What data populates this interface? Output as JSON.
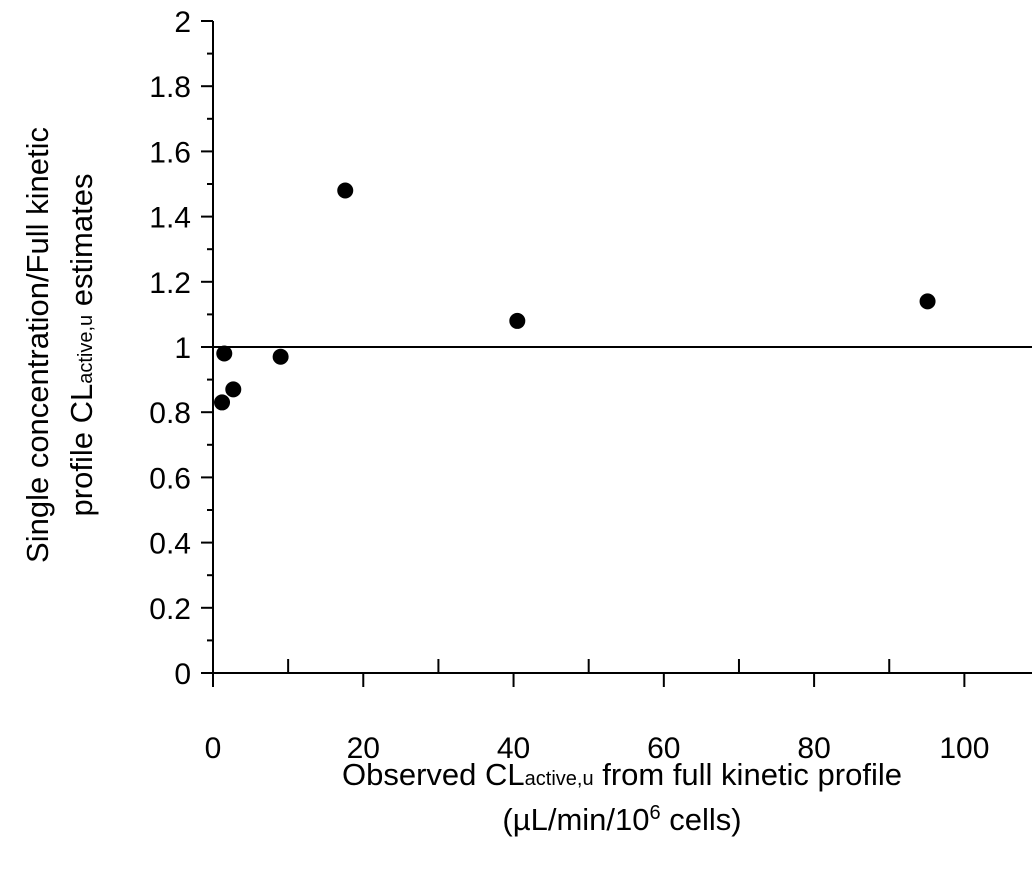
{
  "chart_data": {
    "type": "scatter",
    "title": "",
    "xlabel": {
      "line1_prefix": "Observed CL",
      "line1_subscript": "active,u",
      "line1_suffix": " from full kinetic profile",
      "line2_prefix": "(µL/min/10",
      "line2_superscript": "6",
      "line2_suffix": " cells)"
    },
    "ylabel": {
      "line1": "Single concentration/Full kinetic",
      "line2_prefix": "profile CL",
      "line2_subscript": "active,u",
      "line2_suffix": " estimates"
    },
    "xlim": [
      0,
      109
    ],
    "ylim": [
      0,
      2
    ],
    "x_ticks": [
      0,
      20,
      40,
      60,
      80,
      100
    ],
    "x_tick_labels": [
      "0",
      "20",
      "40",
      "60",
      "80",
      "100"
    ],
    "y_ticks": [
      0,
      0.2,
      0.4,
      0.6,
      0.8,
      1,
      1.2,
      1.4,
      1.6,
      1.8,
      2
    ],
    "y_tick_labels": [
      "0",
      "0.2",
      "0.4",
      "0.6",
      "0.8",
      "1",
      "1.2",
      "1.4",
      "1.6",
      "1.8",
      "2"
    ],
    "reference_line": {
      "y": 1
    },
    "grid": false,
    "legend": "none",
    "marker_color": "#000000",
    "series": [
      {
        "points": [
          {
            "x": 1.2,
            "y": 0.83
          },
          {
            "x": 1.5,
            "y": 0.98
          },
          {
            "x": 2.7,
            "y": 0.87
          },
          {
            "x": 9.0,
            "y": 0.97
          },
          {
            "x": 17.6,
            "y": 1.48
          },
          {
            "x": 40.5,
            "y": 1.08
          },
          {
            "x": 95.1,
            "y": 1.14
          }
        ]
      }
    ]
  }
}
